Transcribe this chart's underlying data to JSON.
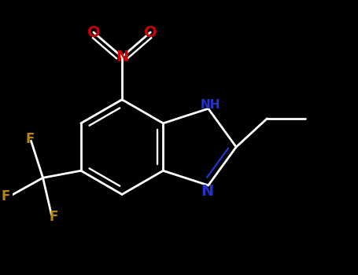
{
  "background_color": "#000000",
  "bond_color": "#ffffff",
  "bond_width": 2.0,
  "atom_colors": {
    "N_nitro": "#cc0000",
    "O": "#cc0000",
    "N_imidazole": "#2233cc",
    "F": "#b8860b"
  },
  "figsize": [
    4.55,
    3.5
  ],
  "dpi": 100,
  "xlim": [
    -2.8,
    4.2
  ],
  "ylim": [
    -3.0,
    2.8
  ]
}
